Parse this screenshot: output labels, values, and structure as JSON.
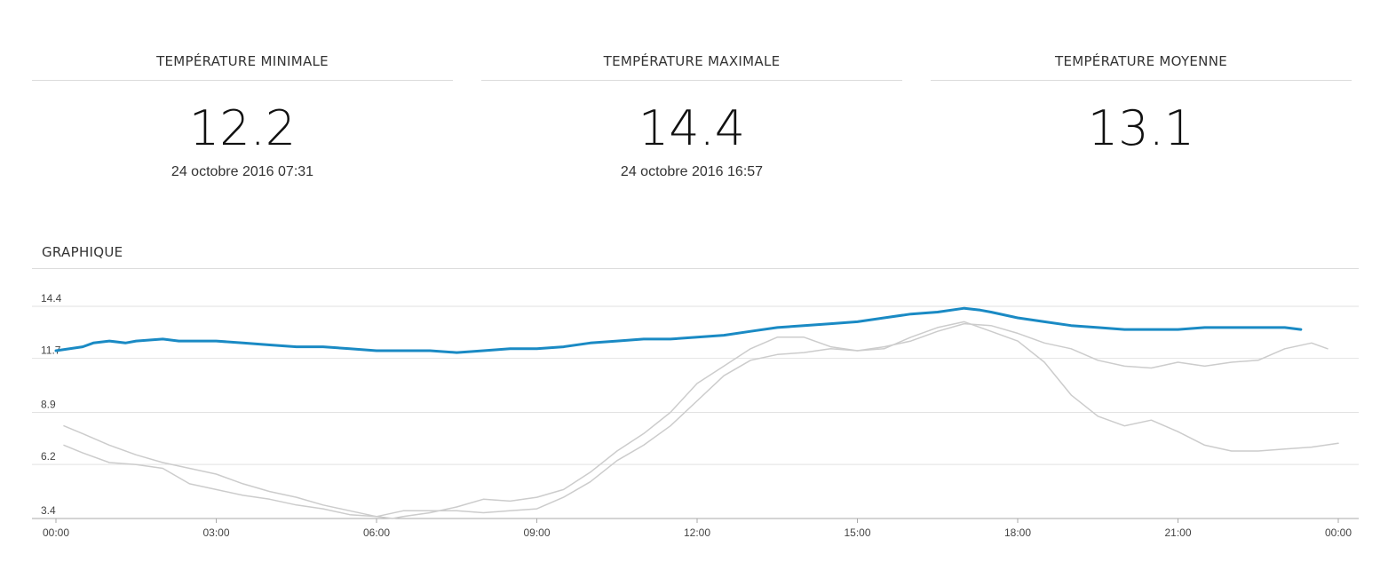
{
  "stats": {
    "min": {
      "title": "TEMPÉRATURE MINIMALE",
      "value": "12.2",
      "date": "24 octobre 2016 07:31"
    },
    "max": {
      "title": "TEMPÉRATURE MAXIMALE",
      "value": "14.4",
      "date": "24 octobre 2016 16:57"
    },
    "avg": {
      "title": "TEMPÉRATURE MOYENNE",
      "value": "13.1"
    }
  },
  "chart_title": "GRAPHIQUE",
  "chart_data": {
    "type": "line",
    "title": "GRAPHIQUE",
    "xlabel": "",
    "ylabel": "",
    "ylim": [
      3.4,
      14.4
    ],
    "xlim": [
      "00:00",
      "24:00"
    ],
    "grid": true,
    "y_ticks": [
      "3.4",
      "6.2",
      "8.9",
      "11.7",
      "14.4"
    ],
    "x_ticks": [
      "00:00",
      "03:00",
      "06:00",
      "09:00",
      "12:00",
      "15:00",
      "18:00",
      "21:00",
      "00:00"
    ],
    "colors": {
      "primary": "#1a8ac4",
      "secondary": "#cccccc",
      "grid": "#e2e2e2",
      "axis": "#aaaaaa"
    },
    "series": [
      {
        "color": "#1a8ac4",
        "x_hours": [
          0,
          0.5,
          0.7,
          1,
          1.3,
          1.5,
          2,
          2.3,
          2.5,
          3,
          3.5,
          4,
          4.5,
          5,
          5.5,
          6,
          6.5,
          7,
          7.5,
          8,
          8.5,
          9,
          9.5,
          10,
          10.5,
          11,
          11.5,
          12,
          12.5,
          13,
          13.5,
          14,
          14.5,
          15,
          15.5,
          16,
          16.5,
          17,
          17.3,
          17.5,
          18,
          18.5,
          19,
          19.5,
          20,
          20.5,
          21,
          21.5,
          22,
          22.5,
          23,
          23.3
        ],
        "values": [
          12.1,
          12.3,
          12.5,
          12.6,
          12.5,
          12.6,
          12.7,
          12.6,
          12.6,
          12.6,
          12.5,
          12.4,
          12.3,
          12.3,
          12.2,
          12.1,
          12.1,
          12.1,
          12.0,
          12.1,
          12.2,
          12.2,
          12.3,
          12.5,
          12.6,
          12.7,
          12.7,
          12.8,
          12.9,
          13.1,
          13.3,
          13.4,
          13.5,
          13.6,
          13.8,
          14.0,
          14.1,
          14.3,
          14.2,
          14.1,
          13.8,
          13.6,
          13.4,
          13.3,
          13.2,
          13.2,
          13.2,
          13.3,
          13.3,
          13.3,
          13.3,
          13.2
        ]
      },
      {
        "color": "#cccccc",
        "x_hours": [
          0.15,
          0.5,
          1,
          1.5,
          2,
          2.5,
          3,
          3.5,
          4,
          4.5,
          5,
          5.5,
          6,
          6.3,
          6.5,
          7,
          7.5,
          8,
          8.5,
          9,
          9.5,
          10,
          10.5,
          11,
          11.5,
          12,
          12.5,
          13,
          13.5,
          14,
          14.5,
          15,
          15.5,
          16,
          16.5,
          17,
          17.5,
          18,
          18.5,
          19,
          19.5,
          20,
          20.5,
          21,
          21.5,
          22,
          22.5,
          23,
          23.5,
          24
        ],
        "values": [
          8.2,
          7.8,
          7.2,
          6.7,
          6.3,
          6.0,
          5.7,
          5.2,
          4.8,
          4.5,
          4.1,
          3.8,
          3.5,
          3.4,
          3.5,
          3.7,
          4.0,
          4.4,
          4.3,
          4.5,
          4.9,
          5.8,
          6.9,
          7.8,
          8.9,
          10.4,
          11.3,
          12.2,
          12.8,
          12.8,
          12.3,
          12.1,
          12.2,
          12.8,
          13.3,
          13.6,
          13.1,
          12.6,
          11.5,
          9.8,
          8.7,
          8.2,
          8.5,
          7.9,
          7.2,
          6.9,
          6.9,
          7.0,
          7.1,
          7.3
        ]
      },
      {
        "color": "#cccccc",
        "x_hours": [
          0.15,
          0.5,
          1,
          1.5,
          2,
          2.5,
          3,
          3.5,
          4,
          4.5,
          5,
          5.5,
          6,
          6.5,
          7,
          7.5,
          8,
          8.5,
          9,
          9.5,
          10,
          10.5,
          11,
          11.5,
          12,
          12.5,
          13,
          13.5,
          14,
          14.5,
          15,
          15.5,
          16,
          16.5,
          17,
          17.5,
          18,
          18.5,
          19,
          19.5,
          20,
          20.5,
          21,
          21.5,
          22,
          22.5,
          23,
          23.5,
          23.8
        ],
        "values": [
          7.2,
          6.8,
          6.3,
          6.2,
          6.0,
          5.2,
          4.9,
          4.6,
          4.4,
          4.1,
          3.9,
          3.6,
          3.5,
          3.8,
          3.8,
          3.8,
          3.7,
          3.8,
          3.9,
          4.5,
          5.3,
          6.4,
          7.2,
          8.2,
          9.5,
          10.8,
          11.6,
          11.9,
          12.0,
          12.2,
          12.1,
          12.3,
          12.6,
          13.1,
          13.5,
          13.4,
          13.0,
          12.5,
          12.2,
          11.6,
          11.3,
          11.2,
          11.5,
          11.3,
          11.5,
          11.6,
          12.2,
          12.5,
          12.2
        ]
      }
    ]
  }
}
